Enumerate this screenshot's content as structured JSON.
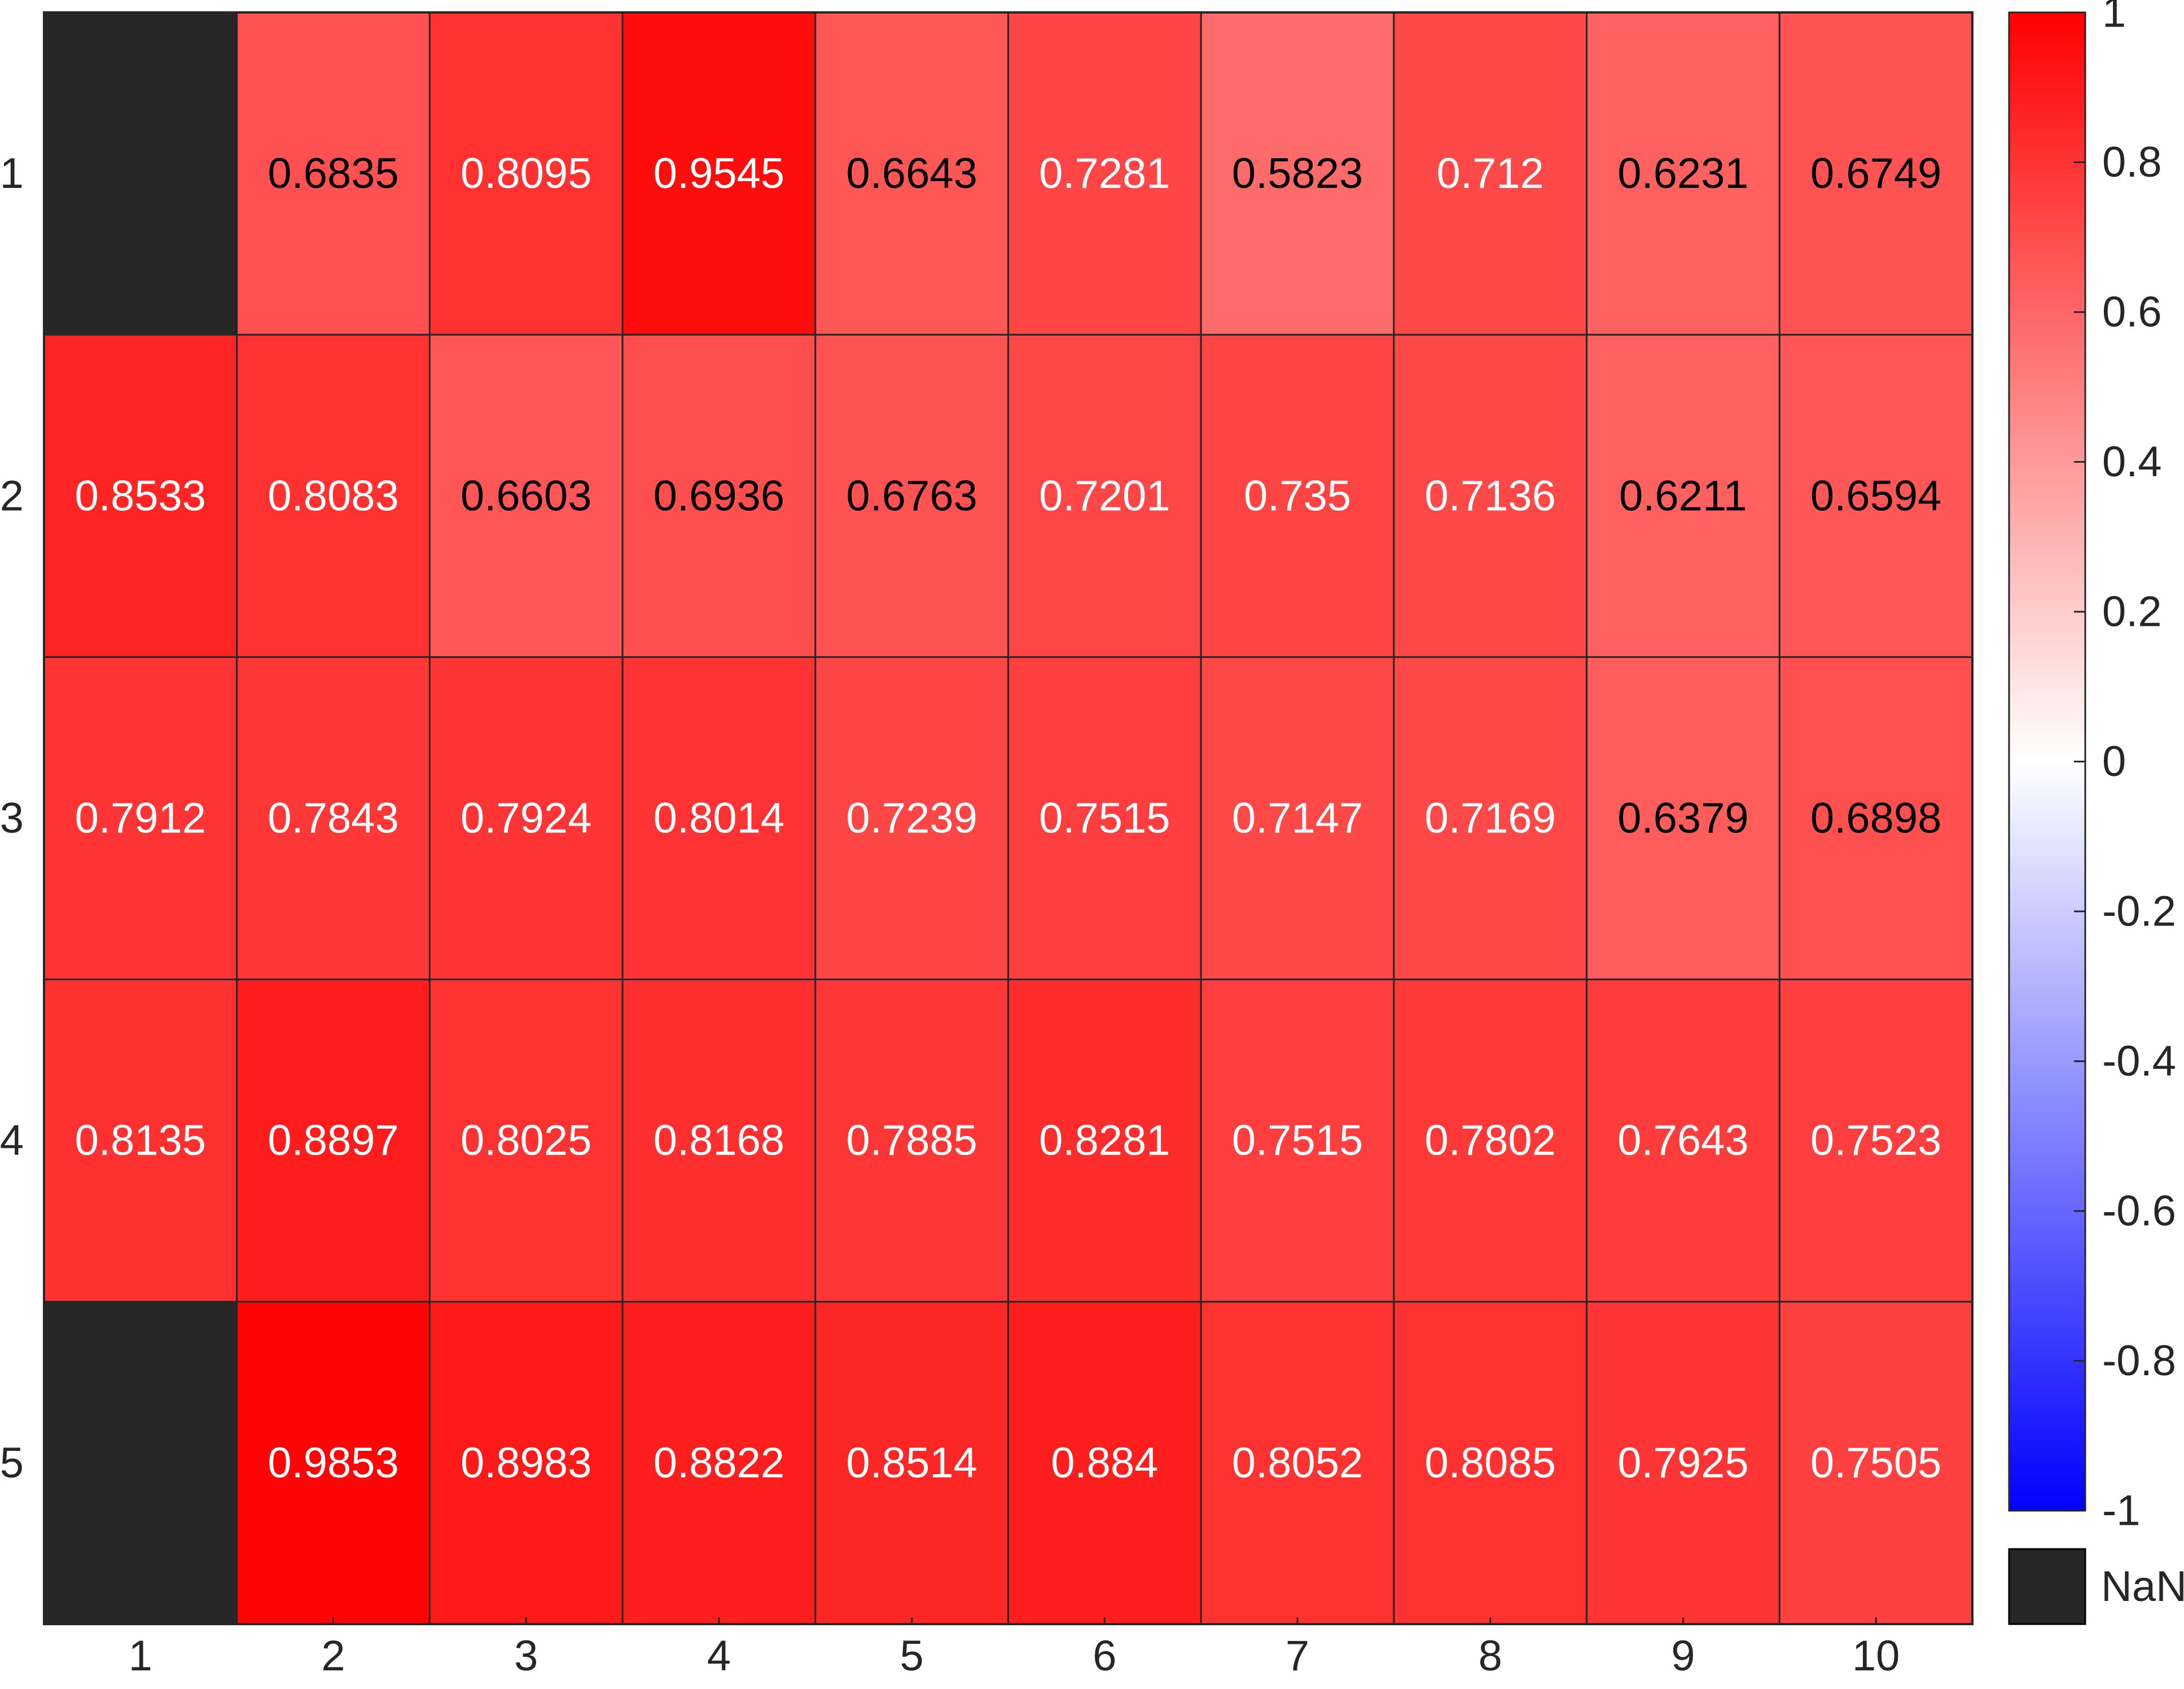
{
  "chart_data": {
    "type": "heatmap",
    "title": "",
    "xlabel": "",
    "ylabel": "",
    "x_ticks": [
      "1",
      "2",
      "3",
      "4",
      "5",
      "6",
      "7",
      "8",
      "9",
      "10"
    ],
    "y_ticks": [
      "1",
      "2",
      "3",
      "4",
      "5"
    ],
    "values": [
      [
        null,
        0.6835,
        0.8095,
        0.9545,
        0.6643,
        0.7281,
        0.5823,
        0.712,
        0.6231,
        0.6749
      ],
      [
        0.8533,
        0.8083,
        0.6603,
        0.6936,
        0.6763,
        0.7201,
        0.735,
        0.7136,
        0.6211,
        0.6594
      ],
      [
        0.7912,
        0.7843,
        0.7924,
        0.8014,
        0.7239,
        0.7515,
        0.7147,
        0.7169,
        0.6379,
        0.6898
      ],
      [
        0.8135,
        0.8897,
        0.8025,
        0.8168,
        0.7885,
        0.8281,
        0.7515,
        0.7802,
        0.7643,
        0.7523
      ],
      [
        null,
        0.9853,
        0.8983,
        0.8822,
        0.8514,
        0.884,
        0.8052,
        0.8085,
        0.7925,
        0.7505
      ]
    ],
    "value_labels": [
      [
        "",
        "0.6835",
        "0.8095",
        "0.9545",
        "0.6643",
        "0.7281",
        "0.5823",
        "0.712",
        "0.6231",
        "0.6749"
      ],
      [
        "0.8533",
        "0.8083",
        "0.6603",
        "0.6936",
        "0.6763",
        "0.7201",
        "0.735",
        "0.7136",
        "0.6211",
        "0.6594"
      ],
      [
        "0.7912",
        "0.7843",
        "0.7924",
        "0.8014",
        "0.7239",
        "0.7515",
        "0.7147",
        "0.7169",
        "0.6379",
        "0.6898"
      ],
      [
        "0.8135",
        "0.8897",
        "0.8025",
        "0.8168",
        "0.7885",
        "0.8281",
        "0.7515",
        "0.7802",
        "0.7643",
        "0.7523"
      ],
      [
        "",
        "0.9853",
        "0.8983",
        "0.8822",
        "0.8514",
        "0.884",
        "0.8052",
        "0.8085",
        "0.7925",
        "0.7505"
      ]
    ],
    "value_label_dark": [
      [
        false,
        true,
        false,
        false,
        true,
        false,
        true,
        false,
        true,
        true
      ],
      [
        false,
        false,
        true,
        true,
        true,
        false,
        false,
        false,
        true,
        true
      ],
      [
        false,
        false,
        false,
        false,
        false,
        false,
        false,
        false,
        true,
        true
      ],
      [
        false,
        false,
        false,
        false,
        false,
        false,
        false,
        false,
        false,
        false
      ],
      [
        false,
        false,
        false,
        false,
        false,
        false,
        false,
        false,
        false,
        false
      ]
    ],
    "colorbar": {
      "range": [
        -1,
        1
      ],
      "ticks": [
        1,
        0.8,
        0.6,
        0.4,
        0.2,
        0,
        -0.2,
        -0.4,
        -0.6,
        -0.8,
        -1
      ],
      "tick_labels": [
        "1",
        "0.8",
        "0.6",
        "0.4",
        "0.2",
        "0",
        "-0.2",
        "-0.4",
        "-0.6",
        "-0.8",
        "-1"
      ],
      "colormap": [
        "#0000ff",
        "#ffffff",
        "#ff0000"
      ]
    },
    "nan_legend": {
      "label": "NaN",
      "color": "#262626"
    },
    "grid": true
  }
}
